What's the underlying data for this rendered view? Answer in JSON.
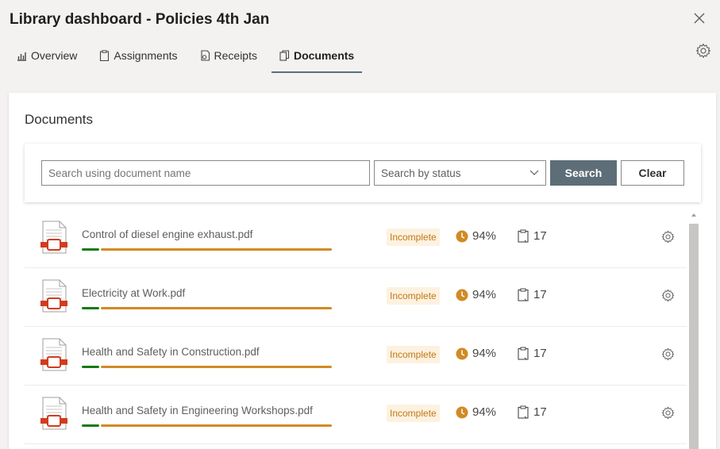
{
  "header": {
    "title": "Library dashboard - Policies 4th Jan"
  },
  "tabs": [
    {
      "label": "Overview",
      "icon": "chart-icon"
    },
    {
      "label": "Assignments",
      "icon": "clipboard-icon"
    },
    {
      "label": "Receipts",
      "icon": "receipt-icon"
    },
    {
      "label": "Documents",
      "icon": "documents-icon",
      "active": true
    }
  ],
  "section": {
    "title": "Documents"
  },
  "search": {
    "name_placeholder": "Search using document name",
    "status_placeholder": "Search by status",
    "search_label": "Search",
    "clear_label": "Clear"
  },
  "documents": [
    {
      "name": "Control of diesel engine exhaust.pdf",
      "status": "Incomplete",
      "percent": "94%",
      "count": "17"
    },
    {
      "name": "Electricity at Work.pdf",
      "status": "Incomplete",
      "percent": "94%",
      "count": "17"
    },
    {
      "name": "Health and Safety in Construction.pdf",
      "status": "Incomplete",
      "percent": "94%",
      "count": "17"
    },
    {
      "name": "Health and Safety in Engineering Workshops.pdf",
      "status": "Incomplete",
      "percent": "94%",
      "count": "17"
    }
  ],
  "colors": {
    "accent": "#5e6e78",
    "complete": "#107c10",
    "incomplete": "#d18a24",
    "badge_bg": "#fdf1e0"
  }
}
